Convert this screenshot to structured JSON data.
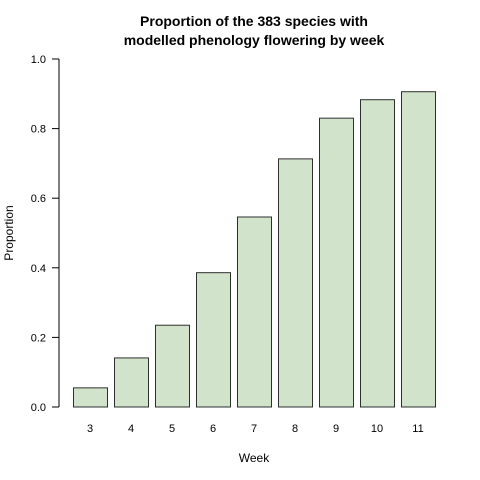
{
  "chart_data": {
    "type": "bar",
    "title_lines": [
      "Proportion of the 383 species with",
      "modelled phenology flowering by week"
    ],
    "xlabel": "Week",
    "ylabel": "Proportion",
    "categories": [
      "3",
      "4",
      "5",
      "6",
      "7",
      "8",
      "9",
      "10",
      "11"
    ],
    "values": [
      0.055,
      0.141,
      0.235,
      0.386,
      0.546,
      0.713,
      0.83,
      0.883,
      0.906
    ],
    "ylim": [
      0,
      1
    ],
    "yticks": [
      "0.0",
      "0.2",
      "0.4",
      "0.6",
      "0.8",
      "1.0"
    ],
    "bar_color": "#d2e3cc",
    "bar_border_color": "#2f2f2f",
    "grid": false
  }
}
